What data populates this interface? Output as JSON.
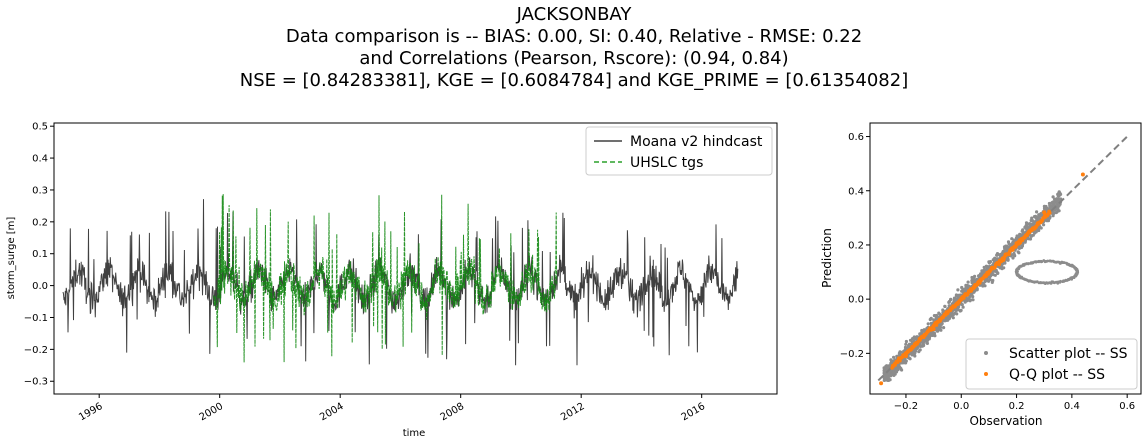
{
  "figure": {
    "title_lines": [
      "JACKSONBAY",
      "Data comparison is   --   BIAS: 0.00, SI: 0.40, Relative - RMSE: 0.22",
      "and Correlations (Pearson, Rscore): (0.94, 0.84)",
      "NSE = [0.84283381], KGE = [0.6084784] and KGE_PRIME = [0.61354082]"
    ]
  },
  "chart_data": [
    {
      "type": "line",
      "xlabel": "time",
      "ylabel": "storm_surge [m]",
      "xlim": [
        1994.5,
        2018.5
      ],
      "ylim": [
        -0.34,
        0.51
      ],
      "x_ticks": [
        "1996",
        "2000",
        "2004",
        "2008",
        "2012",
        "2016"
      ],
      "y_ticks": [
        "0.5",
        "0.4",
        "0.3",
        "0.2",
        "0.1",
        "0.0",
        "−0.1",
        "−0.2",
        "−0.3"
      ],
      "legend_position": "top-right",
      "series": [
        {
          "name": "Moana v2 hindcast",
          "color": "#404040",
          "style": "solid",
          "x_range": [
            1994.8,
            2017.2
          ],
          "y_range": [
            -0.25,
            0.45
          ]
        },
        {
          "name": "UHSLC tgs",
          "color": "#138a13",
          "style": "dashed",
          "x_range": [
            1999.8,
            2011.2
          ],
          "y_range": [
            -0.31,
            0.43
          ]
        }
      ]
    },
    {
      "type": "scatter",
      "xlabel": "Observation",
      "ylabel": "Prediction",
      "xlim": [
        -0.33,
        0.65
      ],
      "ylim": [
        -0.35,
        0.65
      ],
      "x_ticks": [
        "−0.2",
        "0.0",
        "0.2",
        "0.4",
        "0.6"
      ],
      "y_ticks": [
        "0.6",
        "0.4",
        "0.2",
        "0.0",
        "−0.2"
      ],
      "legend_position": "lower-right",
      "reference_line": {
        "x": [
          -0.3,
          0.6
        ],
        "y": [
          -0.3,
          0.6
        ],
        "color": "#808080",
        "style": "dashed"
      },
      "series": [
        {
          "name": "Scatter plot -- SS",
          "color": "#8c8c8c",
          "x_range": [
            -0.28,
            0.44
          ],
          "y_range": [
            -0.3,
            0.46
          ]
        },
        {
          "name": "Q-Q plot -- SS",
          "color": "#ff7f0e",
          "x": [
            -0.29,
            -0.2,
            -0.1,
            0.0,
            0.1,
            0.2,
            0.3,
            0.44
          ],
          "y": [
            -0.31,
            -0.21,
            -0.11,
            0.0,
            0.1,
            0.2,
            0.32,
            0.46
          ]
        }
      ]
    }
  ]
}
